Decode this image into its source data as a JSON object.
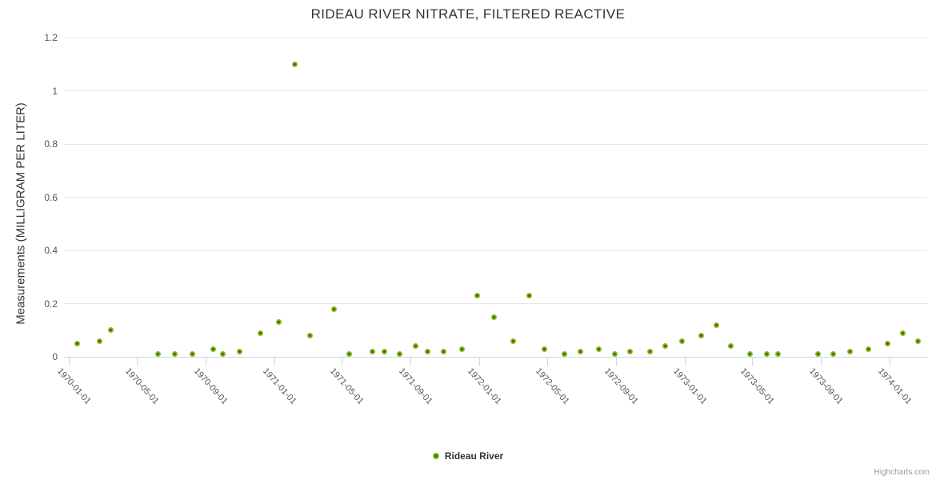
{
  "header": {
    "title": "RIDEAU RIVER NITRATE, FILTERED REACTIVE"
  },
  "legend": {
    "label": "Rideau River",
    "marker_color": "#8abb21",
    "marker_center_color": "#41700a"
  },
  "credit": {
    "label": "Highcharts.com"
  },
  "chart_data": {
    "type": "scatter",
    "title": "RIDEAU RIVER NITRATE, FILTERED REACTIVE",
    "xlabel": "",
    "ylabel": "Measurements (MILLIGRAM PER LITER)",
    "ylim": [
      0,
      1.2
    ],
    "y_ticks": [
      "0",
      "0.2",
      "0.4",
      "0.6",
      "0.8",
      "1",
      "1.2"
    ],
    "x_ticks": [
      "1970-01-01",
      "1970-05-01",
      "1970-09-01",
      "1971-01-01",
      "1971-05-01",
      "1971-09-01",
      "1972-01-01",
      "1972-05-01",
      "1972-09-01",
      "1973-01-01",
      "1973-05-01",
      "1973-09-01",
      "1974-01-01"
    ],
    "x_range": [
      "1969-12-23",
      "1974-03-09"
    ],
    "grid": true,
    "legend_position": "bottom-center",
    "series": [
      {
        "name": "Rideau River",
        "color": "#8abb21",
        "points": [
          [
            "1970-01-16",
            0.05
          ],
          [
            "1970-02-24",
            0.06
          ],
          [
            "1970-03-17",
            0.1
          ],
          [
            "1970-06-08",
            0.01
          ],
          [
            "1970-07-08",
            0.01
          ],
          [
            "1970-08-09",
            0.01
          ],
          [
            "1970-09-14",
            0.03
          ],
          [
            "1970-10-02",
            0.01
          ],
          [
            "1970-11-01",
            0.02
          ],
          [
            "1970-12-07",
            0.09
          ],
          [
            "1971-01-10",
            0.13
          ],
          [
            "1971-02-07",
            1.1
          ],
          [
            "1971-03-06",
            0.08
          ],
          [
            "1971-04-18",
            0.18
          ],
          [
            "1971-05-15",
            0.01
          ],
          [
            "1971-06-25",
            0.02
          ],
          [
            "1971-07-17",
            0.02
          ],
          [
            "1971-08-13",
            0.01
          ],
          [
            "1971-09-10",
            0.04
          ],
          [
            "1971-10-02",
            0.02
          ],
          [
            "1971-10-30",
            0.02
          ],
          [
            "1971-12-02",
            0.03
          ],
          [
            "1971-12-29",
            0.23
          ],
          [
            "1972-01-28",
            0.15
          ],
          [
            "1972-03-02",
            0.06
          ],
          [
            "1972-03-30",
            0.23
          ],
          [
            "1972-04-26",
            0.03
          ],
          [
            "1972-06-01",
            0.01
          ],
          [
            "1972-06-29",
            0.02
          ],
          [
            "1972-08-01",
            0.03
          ],
          [
            "1972-08-30",
            0.01
          ],
          [
            "1972-09-26",
            0.02
          ],
          [
            "1972-10-31",
            0.02
          ],
          [
            "1972-11-27",
            0.04
          ],
          [
            "1972-12-27",
            0.06
          ],
          [
            "1973-01-31",
            0.08
          ],
          [
            "1973-02-27",
            0.12
          ],
          [
            "1973-03-25",
            0.04
          ],
          [
            "1973-04-28",
            0.01
          ],
          [
            "1973-05-27",
            0.01
          ],
          [
            "1973-06-17",
            0.01
          ],
          [
            "1973-08-26",
            0.01
          ],
          [
            "1973-09-23",
            0.01
          ],
          [
            "1973-10-23",
            0.02
          ],
          [
            "1973-11-25",
            0.03
          ],
          [
            "1973-12-29",
            0.05
          ],
          [
            "1974-01-24",
            0.09
          ],
          [
            "1974-02-21",
            0.06
          ]
        ]
      }
    ]
  }
}
